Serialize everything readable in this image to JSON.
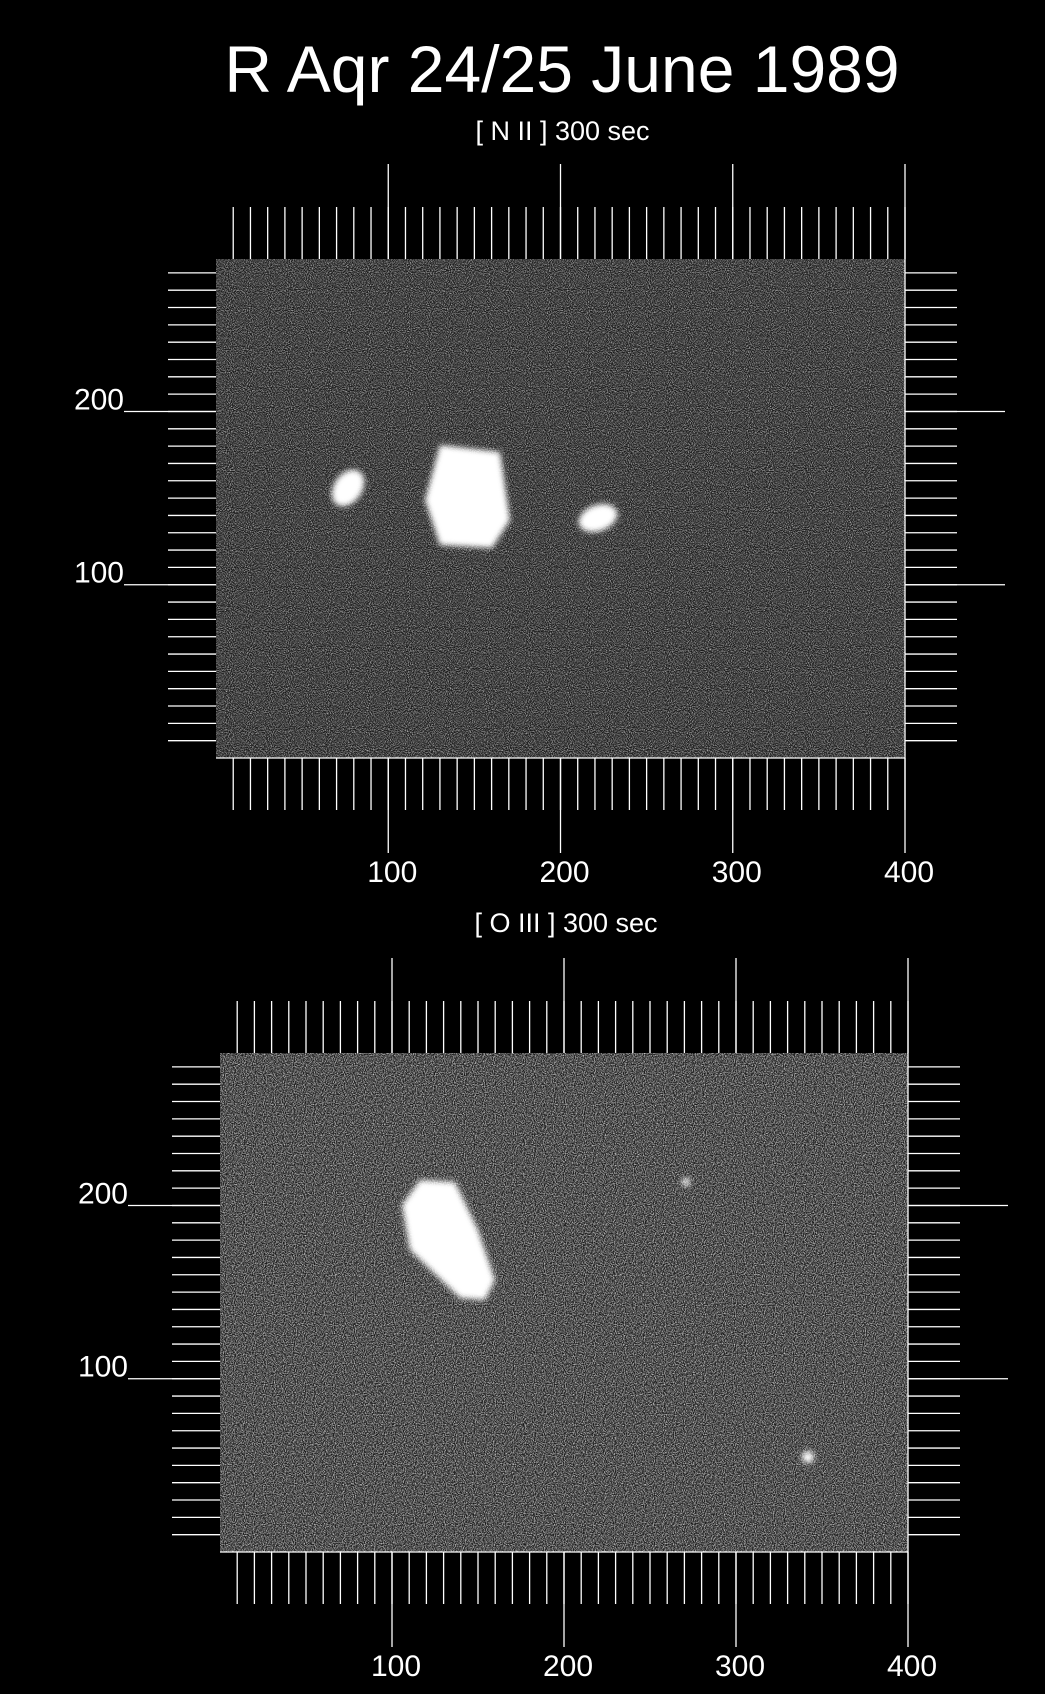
{
  "title": "R Aqr 24/25 June 1989",
  "chart_data": [
    {
      "type": "image",
      "subtitle": "[ N II ] 300 sec",
      "xlim": [
        0,
        400
      ],
      "ylim": [
        0,
        288
      ],
      "xticks": [
        100,
        200,
        300,
        400
      ],
      "yticks": [
        100,
        200
      ],
      "minor_tick_step": 10
    },
    {
      "type": "image",
      "subtitle": "[ O III ] 300 sec",
      "xlim": [
        0,
        400
      ],
      "ylim": [
        0,
        288
      ],
      "xticks": [
        100,
        200,
        300,
        400
      ],
      "yticks": [
        100,
        200
      ],
      "minor_tick_step": 10
    }
  ]
}
